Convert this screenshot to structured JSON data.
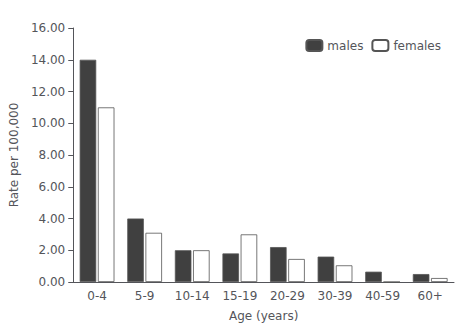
{
  "chart_data": {
    "type": "bar",
    "categories": [
      "0-4",
      "5-9",
      "10-14",
      "15-19",
      "20-29",
      "30-39",
      "40-59",
      "60+"
    ],
    "series": [
      {
        "name": "males",
        "color": "#404040",
        "values": [
          14.0,
          4.0,
          2.0,
          1.8,
          2.2,
          1.6,
          0.65,
          0.5
        ]
      },
      {
        "name": "females",
        "color": "#ffffff",
        "values": [
          11.0,
          3.1,
          2.0,
          3.0,
          1.45,
          1.05,
          0.0,
          0.25
        ]
      }
    ],
    "xlabel": "Age (years)",
    "ylabel": "Rate per 100,000",
    "ylim": [
      0,
      16.0
    ],
    "yticks": [
      {
        "value": 0.0,
        "label": "0.00"
      },
      {
        "value": 2.0,
        "label": "2.00"
      },
      {
        "value": 4.0,
        "label": "4.00"
      },
      {
        "value": 6.0,
        "label": "6.00"
      },
      {
        "value": 8.0,
        "label": "8.00"
      },
      {
        "value": 10.0,
        "label": "10.00"
      },
      {
        "value": 12.0,
        "label": "12.00"
      },
      {
        "value": 14.0,
        "label": "14.00"
      },
      {
        "value": 16.0,
        "label": "16.00"
      }
    ],
    "legend": "upper right",
    "grid": false
  }
}
